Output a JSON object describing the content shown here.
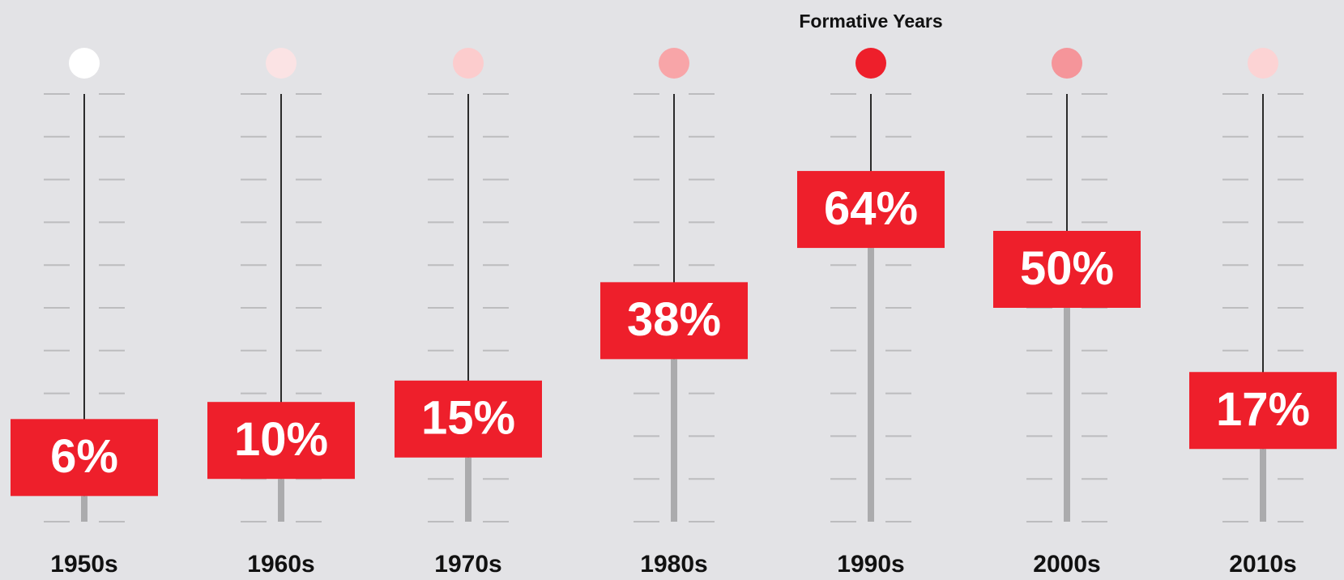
{
  "chart_data": {
    "type": "slider",
    "categories": [
      "1950s",
      "1960s",
      "1970s",
      "1980s",
      "1990s",
      "2000s",
      "2010s"
    ],
    "values": [
      6,
      10,
      15,
      38,
      64,
      50,
      17
    ],
    "value_labels": [
      "6%",
      "10%",
      "15%",
      "38%",
      "64%",
      "50%",
      "17%"
    ],
    "annotations": [
      null,
      null,
      null,
      null,
      "Formative Years",
      null,
      null
    ],
    "dot_colors": [
      "#ffffff",
      "#fbe3e4",
      "#fccccd",
      "#f8a5a8",
      "#ee1f2b",
      "#f5959a",
      "#fcd3d4"
    ],
    "color": "#ee1f2b",
    "ylim": [
      0,
      100
    ],
    "yticks": [
      0,
      10,
      20,
      30,
      40,
      50,
      60,
      70,
      80,
      90,
      100
    ]
  }
}
